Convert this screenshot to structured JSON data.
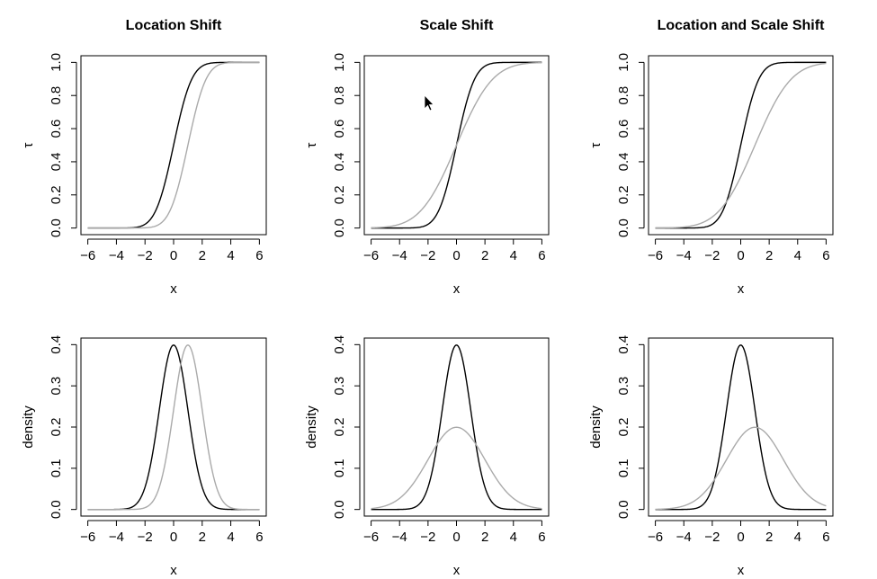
{
  "chart_data": [
    {
      "type": "line",
      "title": "Location Shift",
      "xlabel": "x",
      "ylabel": "τ",
      "xlim": [
        -6,
        6
      ],
      "ylim": [
        0,
        1
      ],
      "x_ticks": [
        "−6",
        "−4",
        "−2",
        "0",
        "2",
        "4",
        "6"
      ],
      "y_ticks": [
        "0.0",
        "0.2",
        "0.4",
        "0.6",
        "0.8",
        "1.0"
      ],
      "curve": "normal_cdf",
      "series": [
        {
          "color": "#000000",
          "mean": 0,
          "sd": 1
        },
        {
          "color": "#aaaaaa",
          "mean": 1,
          "sd": 1
        }
      ]
    },
    {
      "type": "line",
      "title": "Scale Shift",
      "xlabel": "x",
      "ylabel": "τ",
      "xlim": [
        -6,
        6
      ],
      "ylim": [
        0,
        1
      ],
      "x_ticks": [
        "−6",
        "−4",
        "−2",
        "0",
        "2",
        "4",
        "6"
      ],
      "y_ticks": [
        "0.0",
        "0.2",
        "0.4",
        "0.6",
        "0.8",
        "1.0"
      ],
      "curve": "normal_cdf",
      "series": [
        {
          "color": "#000000",
          "mean": 0,
          "sd": 1
        },
        {
          "color": "#aaaaaa",
          "mean": 0,
          "sd": 2
        }
      ]
    },
    {
      "type": "line",
      "title": "Location and Scale Shift",
      "xlabel": "x",
      "ylabel": "τ",
      "xlim": [
        -6,
        6
      ],
      "ylim": [
        0,
        1
      ],
      "x_ticks": [
        "−6",
        "−4",
        "−2",
        "0",
        "2",
        "4",
        "6"
      ],
      "y_ticks": [
        "0.0",
        "0.2",
        "0.4",
        "0.6",
        "0.8",
        "1.0"
      ],
      "curve": "normal_cdf",
      "series": [
        {
          "color": "#000000",
          "mean": 0,
          "sd": 1
        },
        {
          "color": "#aaaaaa",
          "mean": 1,
          "sd": 2
        }
      ]
    },
    {
      "type": "line",
      "title": "",
      "xlabel": "x",
      "ylabel": "density",
      "xlim": [
        -6,
        6
      ],
      "ylim": [
        0,
        0.4
      ],
      "x_ticks": [
        "−6",
        "−4",
        "−2",
        "0",
        "2",
        "4",
        "6"
      ],
      "y_ticks": [
        "0.0",
        "0.1",
        "0.2",
        "0.3",
        "0.4"
      ],
      "curve": "normal_pdf",
      "series": [
        {
          "color": "#000000",
          "mean": 0,
          "sd": 1
        },
        {
          "color": "#aaaaaa",
          "mean": 1,
          "sd": 1
        }
      ]
    },
    {
      "type": "line",
      "title": "",
      "xlabel": "x",
      "ylabel": "density",
      "xlim": [
        -6,
        6
      ],
      "ylim": [
        0,
        0.4
      ],
      "x_ticks": [
        "−6",
        "−4",
        "−2",
        "0",
        "2",
        "4",
        "6"
      ],
      "y_ticks": [
        "0.0",
        "0.1",
        "0.2",
        "0.3",
        "0.4"
      ],
      "curve": "normal_pdf",
      "series": [
        {
          "color": "#000000",
          "mean": 0,
          "sd": 1
        },
        {
          "color": "#aaaaaa",
          "mean": 0,
          "sd": 2
        }
      ]
    },
    {
      "type": "line",
      "title": "",
      "xlabel": "x",
      "ylabel": "density",
      "xlim": [
        -6,
        6
      ],
      "ylim": [
        0,
        0.4
      ],
      "x_ticks": [
        "−6",
        "−4",
        "−2",
        "0",
        "2",
        "4",
        "6"
      ],
      "y_ticks": [
        "0.0",
        "0.1",
        "0.2",
        "0.3",
        "0.4"
      ],
      "curve": "normal_pdf",
      "series": [
        {
          "color": "#000000",
          "mean": 0,
          "sd": 1
        },
        {
          "color": "#aaaaaa",
          "mean": 1,
          "sd": 2
        }
      ]
    }
  ],
  "cursor": {
    "icon": "mouse-pointer-icon"
  }
}
